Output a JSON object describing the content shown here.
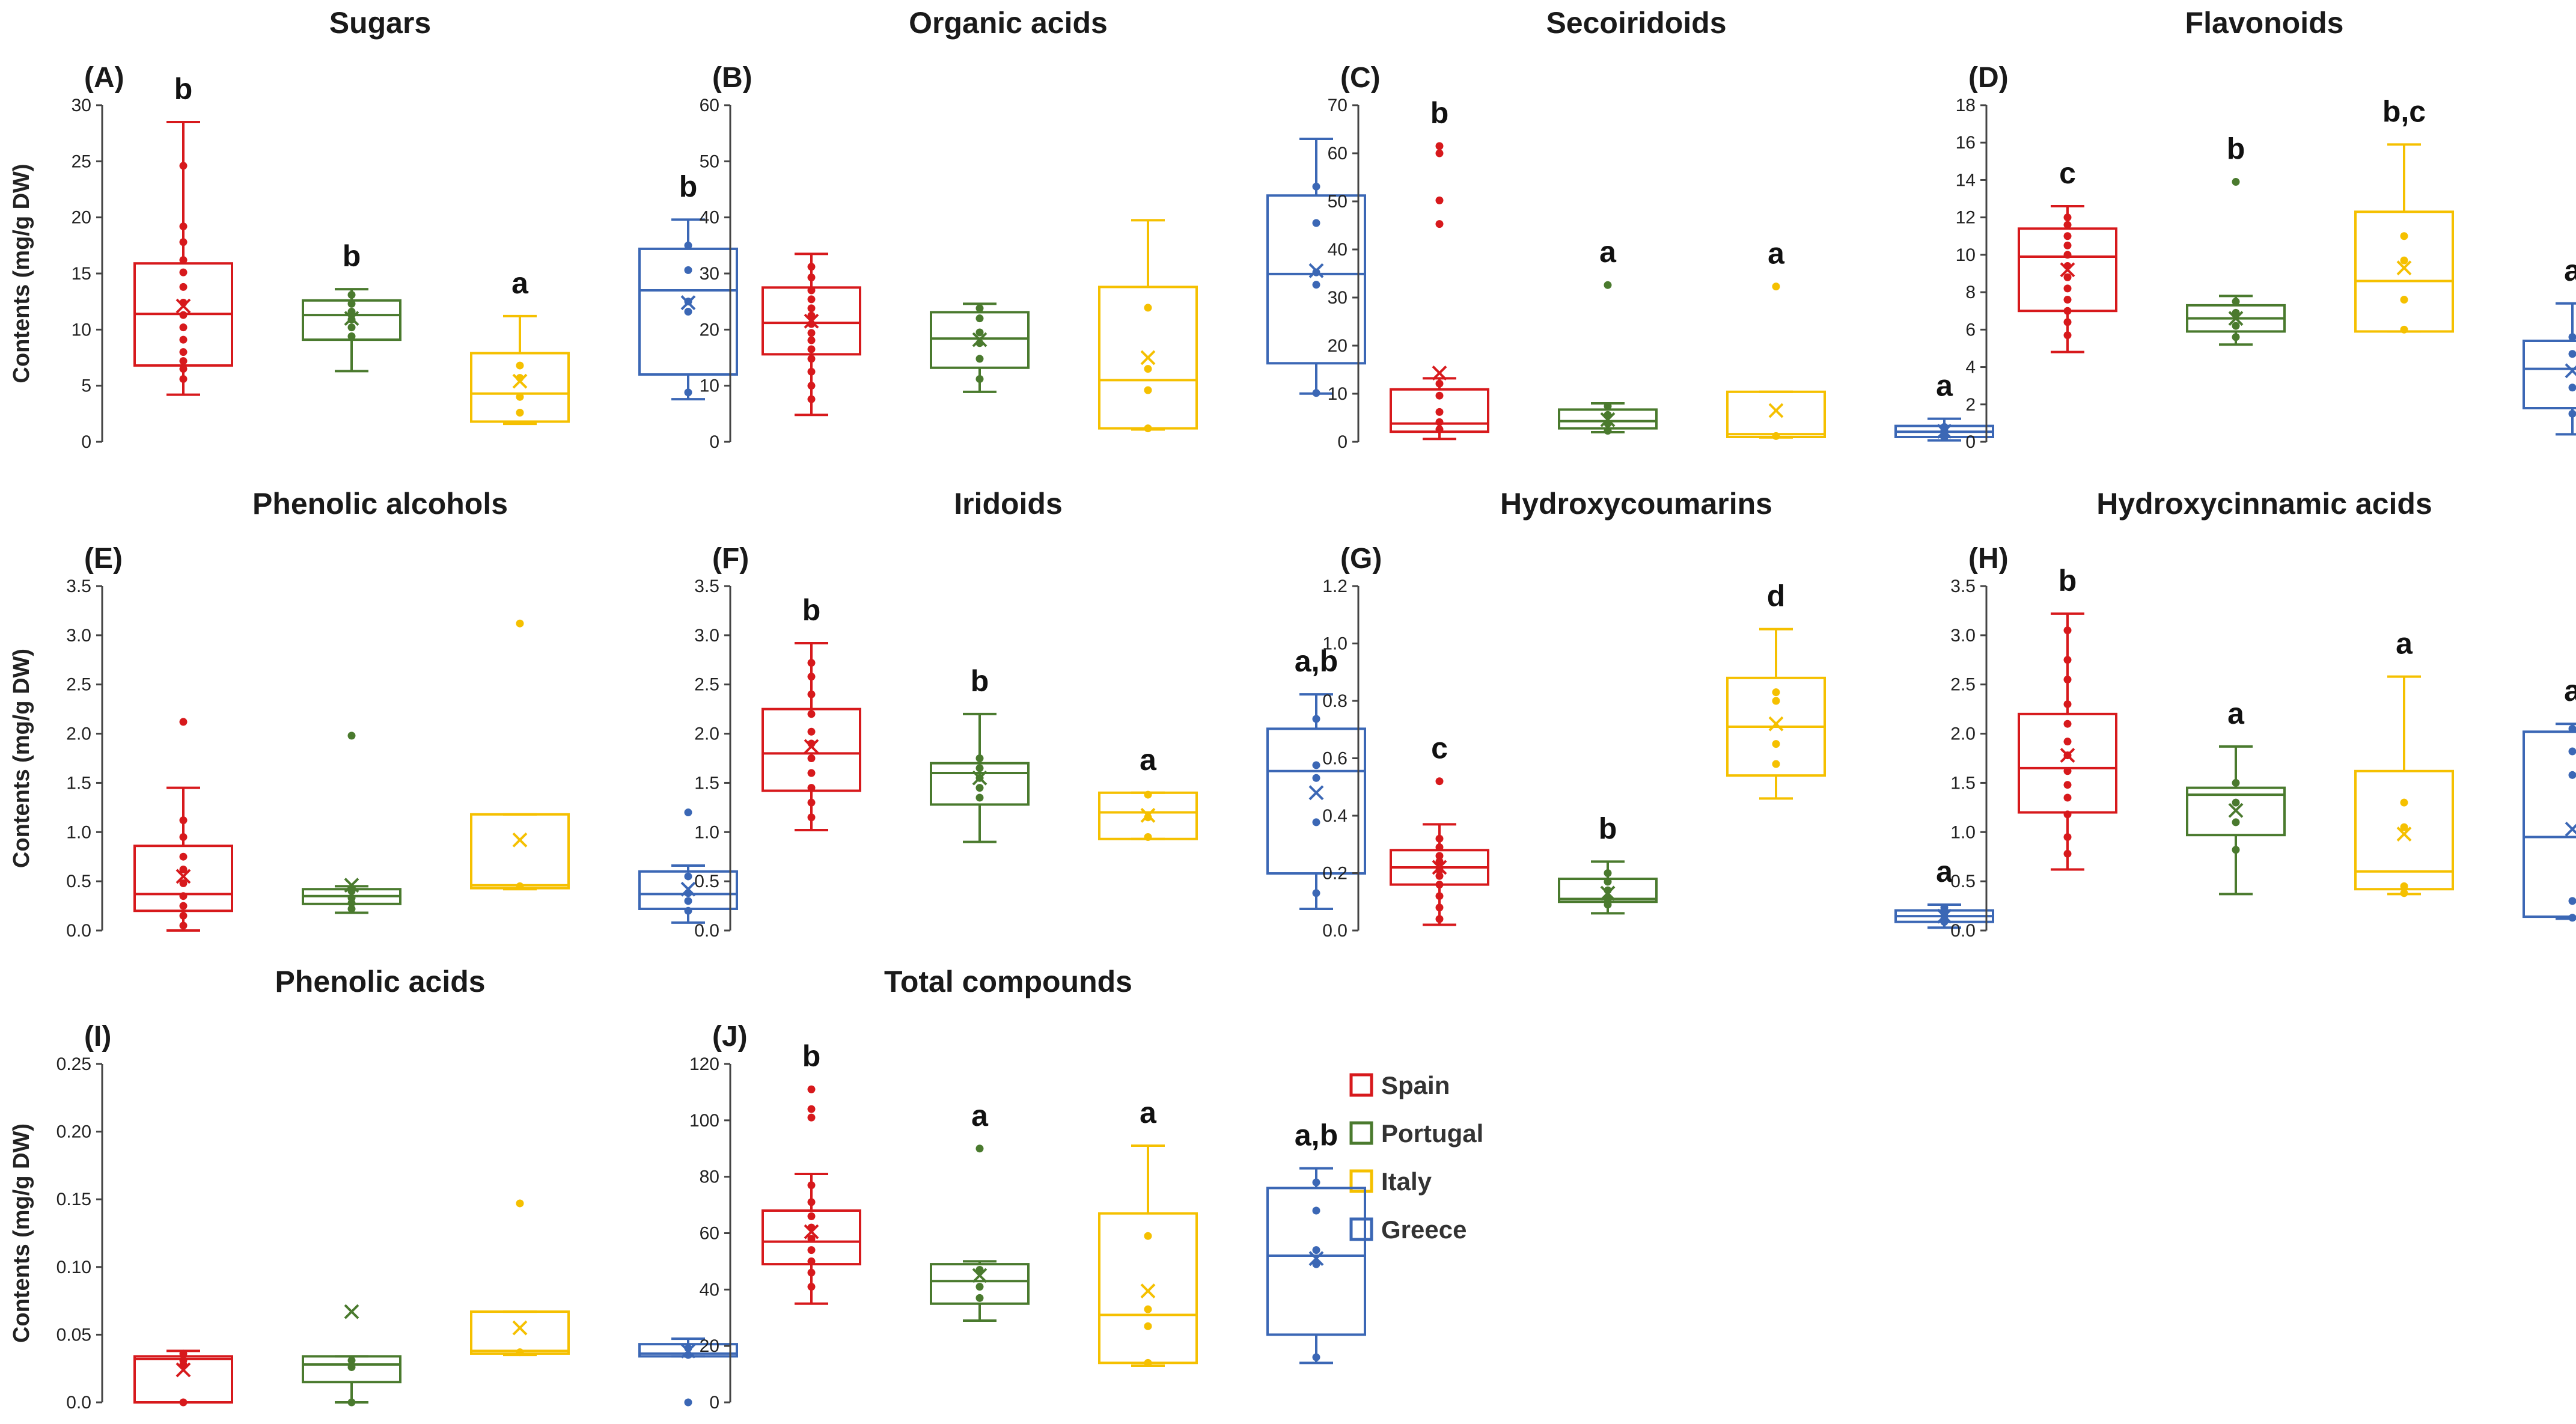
{
  "figure": {
    "legend": [
      {
        "name": "Spain",
        "color": "#d7191c"
      },
      {
        "name": "Portugal",
        "color": "#4a7a2e"
      },
      {
        "name": "Italy",
        "color": "#f5c000"
      },
      {
        "name": "Greece",
        "color": "#3b67b5"
      }
    ]
  },
  "chart_data": [
    {
      "type": "box",
      "label": "(A)",
      "title": "Sugars",
      "ylabel": "Contents (mg/g DW)",
      "ylim": [
        0,
        30
      ],
      "yticks": [
        0,
        5,
        10,
        15,
        20,
        25,
        30
      ],
      "ytick_labels": [
        "0",
        "5",
        "10",
        "15",
        "20",
        "25",
        "30"
      ],
      "series": [
        {
          "name": "Spain",
          "min": 4.2,
          "q1": 6.8,
          "median": 11.4,
          "q3": 15.9,
          "max": 28.5,
          "mean": 12.1,
          "points": [
            24.6,
            19.2,
            17.8,
            16.2,
            15.1,
            13.8,
            12.4,
            11.3,
            10.2,
            9.1,
            8.0,
            7.2,
            6.5,
            5.6
          ],
          "sig": "b"
        },
        {
          "name": "Portugal",
          "min": 6.3,
          "q1": 9.1,
          "median": 11.3,
          "q3": 12.6,
          "max": 13.6,
          "mean": 11.0,
          "points": [
            13.1,
            12.3,
            11.6,
            10.9,
            10.2,
            9.4
          ],
          "sig": "b"
        },
        {
          "name": "Italy",
          "min": 1.6,
          "q1": 1.8,
          "median": 4.3,
          "q3": 7.9,
          "max": 11.2,
          "mean": 5.4,
          "points": [
            6.8,
            5.7,
            4.0,
            2.6
          ],
          "sig": "a"
        },
        {
          "name": "Greece",
          "min": 3.8,
          "q1": 6.0,
          "median": 13.5,
          "q3": 17.2,
          "max": 19.8,
          "mean": 12.4,
          "points": [
            17.5,
            15.3,
            12.5,
            11.6,
            4.4
          ],
          "sig": "b"
        }
      ]
    },
    {
      "type": "box",
      "label": "(B)",
      "title": "Organic acids",
      "ylabel": "",
      "ylim": [
        0,
        60
      ],
      "yticks": [
        0,
        10,
        20,
        30,
        40,
        50,
        60
      ],
      "ytick_labels": [
        "0",
        "10",
        "20",
        "30",
        "40",
        "50",
        "60"
      ],
      "series": [
        {
          "name": "Spain",
          "min": 4.8,
          "q1": 15.6,
          "median": 21.2,
          "q3": 27.5,
          "max": 33.5,
          "mean": 21.5,
          "points": [
            31.2,
            29.3,
            27.0,
            25.4,
            23.8,
            22.5,
            21.0,
            19.4,
            18.1,
            16.5,
            14.8,
            12.5,
            10.0,
            7.6
          ],
          "sig": ""
        },
        {
          "name": "Portugal",
          "min": 8.9,
          "q1": 13.2,
          "median": 18.4,
          "q3": 23.1,
          "max": 24.6,
          "mean": 18.2,
          "points": [
            23.8,
            22.0,
            19.5,
            17.6,
            14.8,
            11.2
          ],
          "sig": ""
        },
        {
          "name": "Italy",
          "min": 2.2,
          "q1": 2.4,
          "median": 11.0,
          "q3": 27.6,
          "max": 39.5,
          "mean": 15.0,
          "points": [
            23.9,
            13.0,
            9.2,
            2.4
          ],
          "sig": ""
        },
        {
          "name": "Greece",
          "min": 8.6,
          "q1": 14.0,
          "median": 29.9,
          "q3": 43.9,
          "max": 54.0,
          "mean": 30.5,
          "points": [
            45.5,
            39.0,
            30.2,
            28.0,
            8.7
          ],
          "sig": ""
        }
      ]
    },
    {
      "type": "box",
      "label": "(C)",
      "title": "Secoiridoids",
      "ylabel": "",
      "ylim": [
        0,
        70
      ],
      "yticks": [
        0,
        10,
        20,
        30,
        40,
        50,
        60,
        70
      ],
      "ytick_labels": [
        "0",
        "10",
        "20",
        "30",
        "40",
        "50",
        "60",
        "70"
      ],
      "series": [
        {
          "name": "Spain",
          "min": 0.6,
          "q1": 2.1,
          "median": 3.8,
          "q3": 10.9,
          "max": 13.2,
          "mean": 14.3,
          "points": [
            61.5,
            60.0,
            50.2,
            45.3,
            12.1,
            9.6,
            6.2,
            4.1,
            2.6
          ],
          "sig": "b"
        },
        {
          "name": "Portugal",
          "min": 2.0,
          "q1": 2.8,
          "median": 4.3,
          "q3": 6.7,
          "max": 8.0,
          "mean": 4.6,
          "points": [
            32.6,
            7.4,
            5.6,
            3.8,
            2.3
          ],
          "sig": "a"
        },
        {
          "name": "Italy",
          "min": 0.9,
          "q1": 1.0,
          "median": 1.6,
          "q3": 10.4,
          "max": 10.4,
          "mean": 6.5,
          "points": [
            32.3,
            1.2
          ],
          "sig": "a"
        },
        {
          "name": "Greece",
          "min": 0.3,
          "q1": 1.0,
          "median": 2.1,
          "q3": 3.3,
          "max": 4.8,
          "mean": 2.2,
          "points": [
            3.1,
            2.4,
            1.6,
            0.9
          ],
          "sig": "a"
        }
      ]
    },
    {
      "type": "box",
      "label": "(D)",
      "title": "Flavonoids",
      "ylabel": "",
      "ylim": [
        0,
        18
      ],
      "yticks": [
        0,
        2,
        4,
        6,
        8,
        10,
        12,
        14,
        16,
        18
      ],
      "ytick_labels": [
        "0",
        "2",
        "4",
        "6",
        "8",
        "10",
        "12",
        "14",
        "16",
        "18"
      ],
      "series": [
        {
          "name": "Spain",
          "min": 4.8,
          "q1": 7.0,
          "median": 9.9,
          "q3": 11.4,
          "max": 12.6,
          "mean": 9.2,
          "points": [
            12.0,
            11.6,
            11.0,
            10.5,
            10.0,
            9.4,
            8.8,
            8.2,
            7.6,
            7.0,
            6.4,
            5.7
          ],
          "sig": "c"
        },
        {
          "name": "Portugal",
          "min": 5.2,
          "q1": 5.9,
          "median": 6.6,
          "q3": 7.3,
          "max": 7.8,
          "mean": 6.6,
          "points": [
            13.9,
            7.5,
            6.9,
            6.2,
            5.6
          ],
          "sig": "b"
        },
        {
          "name": "Italy",
          "min": 5.9,
          "q1": 5.9,
          "median": 8.6,
          "q3": 12.3,
          "max": 15.9,
          "mean": 9.3,
          "points": [
            11.0,
            9.7,
            7.6,
            6.0
          ],
          "sig": "b,c"
        },
        {
          "name": "Greece",
          "min": 0.4,
          "q1": 1.8,
          "median": 3.9,
          "q3": 5.4,
          "max": 7.4,
          "mean": 3.8,
          "points": [
            5.6,
            4.7,
            2.9,
            1.5
          ],
          "sig": "a"
        }
      ]
    },
    {
      "type": "box",
      "label": "(E)",
      "title": "Phenolic alcohols",
      "ylabel": "Contents (mg/g DW)",
      "ylim": [
        0,
        3.5
      ],
      "yticks": [
        0,
        0.5,
        1,
        1.5,
        2,
        2.5,
        3,
        3.5
      ],
      "ytick_labels": [
        "0.0",
        "0.5",
        "1.0",
        "1.5",
        "2.0",
        "2.5",
        "3.0",
        "3.5"
      ],
      "series": [
        {
          "name": "Spain",
          "min": 0.0,
          "q1": 0.2,
          "median": 0.37,
          "q3": 0.86,
          "max": 1.45,
          "mean": 0.55,
          "points": [
            2.12,
            1.12,
            0.95,
            0.75,
            0.62,
            0.48,
            0.35,
            0.25,
            0.15,
            0.05
          ],
          "sig": ""
        },
        {
          "name": "Portugal",
          "min": 0.18,
          "q1": 0.27,
          "median": 0.35,
          "q3": 0.42,
          "max": 0.45,
          "mean": 0.46,
          "points": [
            1.98,
            0.4,
            0.33,
            0.28,
            0.22
          ],
          "sig": ""
        },
        {
          "name": "Italy",
          "min": 0.42,
          "q1": 0.43,
          "median": 0.46,
          "q3": 1.18,
          "max": 1.18,
          "mean": 0.92,
          "points": [
            3.12,
            0.45
          ],
          "sig": ""
        },
        {
          "name": "Greece",
          "min": 0.08,
          "q1": 0.22,
          "median": 0.37,
          "q3": 0.6,
          "max": 0.66,
          "mean": 0.42,
          "points": [
            1.2,
            0.55,
            0.38,
            0.3,
            0.2
          ],
          "sig": ""
        }
      ]
    },
    {
      "type": "box",
      "label": "(F)",
      "title": "Iridoids",
      "ylabel": "",
      "ylim": [
        0,
        3.5
      ],
      "yticks": [
        0,
        0.5,
        1,
        1.5,
        2,
        2.5,
        3,
        3.5
      ],
      "ytick_labels": [
        "0.0",
        "0.5",
        "1.0",
        "1.5",
        "2.0",
        "2.5",
        "3.0",
        "3.5"
      ],
      "series": [
        {
          "name": "Spain",
          "min": 1.02,
          "q1": 1.42,
          "median": 1.8,
          "q3": 2.25,
          "max": 2.92,
          "mean": 1.87,
          "points": [
            2.72,
            2.58,
            2.4,
            2.2,
            2.02,
            1.9,
            1.75,
            1.6,
            1.45,
            1.3,
            1.15
          ],
          "sig": "b"
        },
        {
          "name": "Portugal",
          "min": 0.9,
          "q1": 1.28,
          "median": 1.6,
          "q3": 1.7,
          "max": 2.2,
          "mean": 1.55,
          "points": [
            1.75,
            1.65,
            1.55,
            1.45,
            1.35
          ],
          "sig": "b"
        },
        {
          "name": "Italy",
          "min": 0.93,
          "q1": 0.93,
          "median": 1.2,
          "q3": 1.4,
          "max": 1.4,
          "mean": 1.17,
          "points": [
            1.38,
            1.15,
            0.95
          ],
          "sig": "a"
        },
        {
          "name": "Greece",
          "min": 0.22,
          "q1": 0.58,
          "median": 1.62,
          "q3": 2.05,
          "max": 2.4,
          "mean": 1.4,
          "points": [
            2.15,
            1.68,
            1.55,
            1.1,
            0.38
          ],
          "sig": "a,b"
        }
      ]
    },
    {
      "type": "box",
      "label": "(G)",
      "title": "Hydroxycoumarins",
      "ylabel": "",
      "ylim": [
        0,
        1.2
      ],
      "yticks": [
        0,
        0.2,
        0.4,
        0.6,
        0.8,
        1,
        1.2
      ],
      "ytick_labels": [
        "0.0",
        "0.2",
        "0.4",
        "0.6",
        "0.8",
        "1.0",
        "1.2"
      ],
      "series": [
        {
          "name": "Spain",
          "min": 0.02,
          "q1": 0.16,
          "median": 0.22,
          "q3": 0.28,
          "max": 0.37,
          "mean": 0.22,
          "points": [
            0.52,
            0.32,
            0.29,
            0.26,
            0.24,
            0.21,
            0.19,
            0.16,
            0.12,
            0.08,
            0.04
          ],
          "sig": "c"
        },
        {
          "name": "Portugal",
          "min": 0.06,
          "q1": 0.1,
          "median": 0.11,
          "q3": 0.18,
          "max": 0.24,
          "mean": 0.13,
          "points": [
            0.2,
            0.17,
            0.14,
            0.11,
            0.09
          ],
          "sig": "b"
        },
        {
          "name": "Italy",
          "min": 0.46,
          "q1": 0.54,
          "median": 0.71,
          "q3": 0.88,
          "max": 1.05,
          "mean": 0.72,
          "points": [
            0.83,
            0.8,
            0.65,
            0.58
          ],
          "sig": "d"
        },
        {
          "name": "Greece",
          "min": 0.01,
          "q1": 0.03,
          "median": 0.05,
          "q3": 0.07,
          "max": 0.09,
          "mean": 0.05,
          "points": [
            0.08,
            0.06,
            0.04,
            0.03
          ],
          "sig": "a"
        }
      ]
    },
    {
      "type": "box",
      "label": "(H)",
      "title": "Hydroxycinnamic acids",
      "ylabel": "",
      "ylim": [
        0,
        3.5
      ],
      "yticks": [
        0,
        0.5,
        1,
        1.5,
        2,
        2.5,
        3,
        3.5
      ],
      "ytick_labels": [
        "0.0",
        "0.5",
        "1.0",
        "1.5",
        "2.0",
        "2.5",
        "3.0",
        "3.5"
      ],
      "series": [
        {
          "name": "Spain",
          "min": 0.62,
          "q1": 1.2,
          "median": 1.65,
          "q3": 2.2,
          "max": 3.22,
          "mean": 1.78,
          "points": [
            3.05,
            2.75,
            2.55,
            2.3,
            2.1,
            1.92,
            1.78,
            1.62,
            1.48,
            1.35,
            1.18,
            0.95,
            0.78
          ],
          "sig": "b"
        },
        {
          "name": "Portugal",
          "min": 0.37,
          "q1": 0.97,
          "median": 1.38,
          "q3": 1.45,
          "max": 1.87,
          "mean": 1.22,
          "points": [
            1.5,
            1.3,
            1.1,
            0.82
          ],
          "sig": "a"
        },
        {
          "name": "Italy",
          "min": 0.37,
          "q1": 0.42,
          "median": 0.6,
          "q3": 1.62,
          "max": 2.58,
          "mean": 0.98,
          "points": [
            1.3,
            1.05,
            0.45,
            0.38
          ],
          "sig": "a"
        },
        {
          "name": "Greece",
          "min": 0.12,
          "q1": 0.14,
          "median": 0.95,
          "q3": 2.02,
          "max": 2.1,
          "mean": 1.03,
          "points": [
            2.05,
            1.82,
            1.58,
            0.3,
            0.13
          ],
          "sig": "a"
        }
      ]
    },
    {
      "type": "box",
      "label": "(I)",
      "title": "Phenolic acids",
      "ylabel": "Contents (mg/g DW)",
      "ylim": [
        0,
        0.25
      ],
      "yticks": [
        0,
        0.05,
        0.1,
        0.15,
        0.2,
        0.25
      ],
      "ytick_labels": [
        "0.0",
        "0.05",
        "0.10",
        "0.15",
        "0.20",
        "0.25"
      ],
      "series": [
        {
          "name": "Spain",
          "min": 0.0,
          "q1": 0.0,
          "median": 0.032,
          "q3": 0.034,
          "max": 0.038,
          "mean": 0.024,
          "points": [
            0.036,
            0.031,
            0.028,
            0.0
          ],
          "sig": ""
        },
        {
          "name": "Portugal",
          "min": 0.0,
          "q1": 0.015,
          "median": 0.028,
          "q3": 0.034,
          "max": 0.034,
          "mean": 0.067,
          "points": [
            0.031,
            0.026,
            0.0
          ],
          "sig": ""
        },
        {
          "name": "Italy",
          "min": 0.035,
          "q1": 0.036,
          "median": 0.038,
          "q3": 0.067,
          "max": 0.067,
          "mean": 0.055,
          "points": [
            0.147,
            0.037
          ],
          "sig": ""
        },
        {
          "name": "Greece",
          "min": 0.034,
          "q1": 0.034,
          "median": 0.036,
          "q3": 0.043,
          "max": 0.047,
          "mean": 0.038,
          "points": [
            0.04,
            0.035,
            0.0
          ],
          "sig": ""
        }
      ]
    },
    {
      "type": "box",
      "label": "(J)",
      "title": "Total compounds",
      "ylabel": "",
      "ylim": [
        0,
        120
      ],
      "yticks": [
        0,
        20,
        40,
        60,
        80,
        100,
        120
      ],
      "ytick_labels": [
        "0",
        "20",
        "40",
        "60",
        "80",
        "100",
        "120"
      ],
      "series": [
        {
          "name": "Spain",
          "min": 35.0,
          "q1": 49.0,
          "median": 57.0,
          "q3": 68.0,
          "max": 81.0,
          "mean": 60.5,
          "points": [
            111.0,
            104.0,
            101.0,
            77.0,
            71.0,
            66.0,
            62.0,
            58.0,
            54.0,
            50.0,
            46.0,
            41.0
          ],
          "sig": "b"
        },
        {
          "name": "Portugal",
          "min": 29.0,
          "q1": 35.0,
          "median": 43.0,
          "q3": 49.0,
          "max": 50.0,
          "mean": 45.0,
          "points": [
            90.0,
            47.0,
            41.0,
            37.0
          ],
          "sig": "a"
        },
        {
          "name": "Italy",
          "min": 13.0,
          "q1": 14.0,
          "median": 31.0,
          "q3": 67.0,
          "max": 91.0,
          "mean": 39.5,
          "points": [
            59.0,
            33.0,
            27.0,
            14.0
          ],
          "sig": "a"
        },
        {
          "name": "Greece",
          "min": 14.0,
          "q1": 24.0,
          "median": 52.0,
          "q3": 76.0,
          "max": 83.0,
          "mean": 51.0,
          "points": [
            78.0,
            68.0,
            54.0,
            49.0,
            16.0
          ],
          "sig": "a,b"
        }
      ]
    }
  ]
}
